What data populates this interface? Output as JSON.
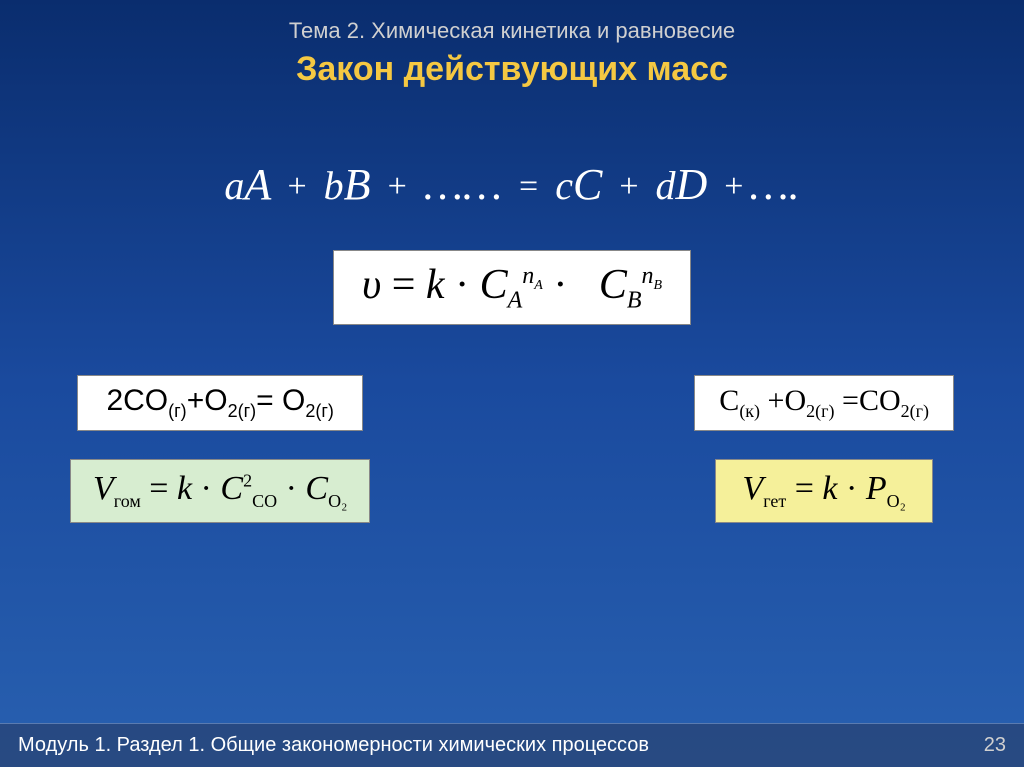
{
  "header": {
    "topic": "Тема 2. Химическая кинетика и равновесие",
    "title": "Закон действующих масс"
  },
  "main_equation": {
    "text_plain": "aA + bB + …… = cC + dD + ….",
    "a": "a",
    "A": "A",
    "b": "b",
    "B": "B",
    "c": "c",
    "C": "C",
    "d": "d",
    "D": "D",
    "dots1": "……",
    "eq": "=",
    "dots2": "…."
  },
  "rate_law": {
    "upsilon": "υ",
    "eq": "=",
    "k": "k",
    "dot": "·",
    "C": "C",
    "A": "A",
    "nA": "nA",
    "B": "B",
    "nB": "nB"
  },
  "left_column": {
    "reaction": {
      "lhs_coef": "2",
      "lhs1": "CO",
      "lhs1_sub": "(г)",
      "plus": "+",
      "lhs2": "O",
      "lhs2_sub": "2(г)",
      "eq": "=",
      "rhs": " O",
      "rhs_sub": "2(г)"
    },
    "formula": {
      "V": "V",
      "V_sub": "гом",
      "eq": "=",
      "k": "k",
      "dot": "·",
      "C1": "C",
      "C1_sup": "2",
      "C1_sub": "CO",
      "C2": "C",
      "C2_sub": "O₂",
      "bg_color": "#d7edd0"
    }
  },
  "right_column": {
    "reaction": {
      "lhs1": "C",
      "lhs1_sub": "(к)",
      "plus": "+",
      "lhs2": "O",
      "lhs2_sub": "2(г)",
      "eq": "=",
      "rhs": "CO",
      "rhs_sub": "2(г)"
    },
    "formula": {
      "V": "V",
      "V_sub": "гет",
      "eq": "=",
      "k": "k",
      "dot": "·",
      "P": "P",
      "P_sub": "O₂",
      "bg_color": "#f5f09a"
    }
  },
  "footer": {
    "text": "Модуль 1. Раздел 1. Общие закономерности химических процессов",
    "page": "23"
  },
  "colors": {
    "bg_top": "#0a2d6e",
    "bg_bottom": "#2860b0",
    "title": "#f5c842",
    "topic": "#d0d0d0",
    "text": "#ffffff",
    "box_white": "#ffffff",
    "box_green": "#d7edd0",
    "box_yellow": "#f5f09a"
  }
}
